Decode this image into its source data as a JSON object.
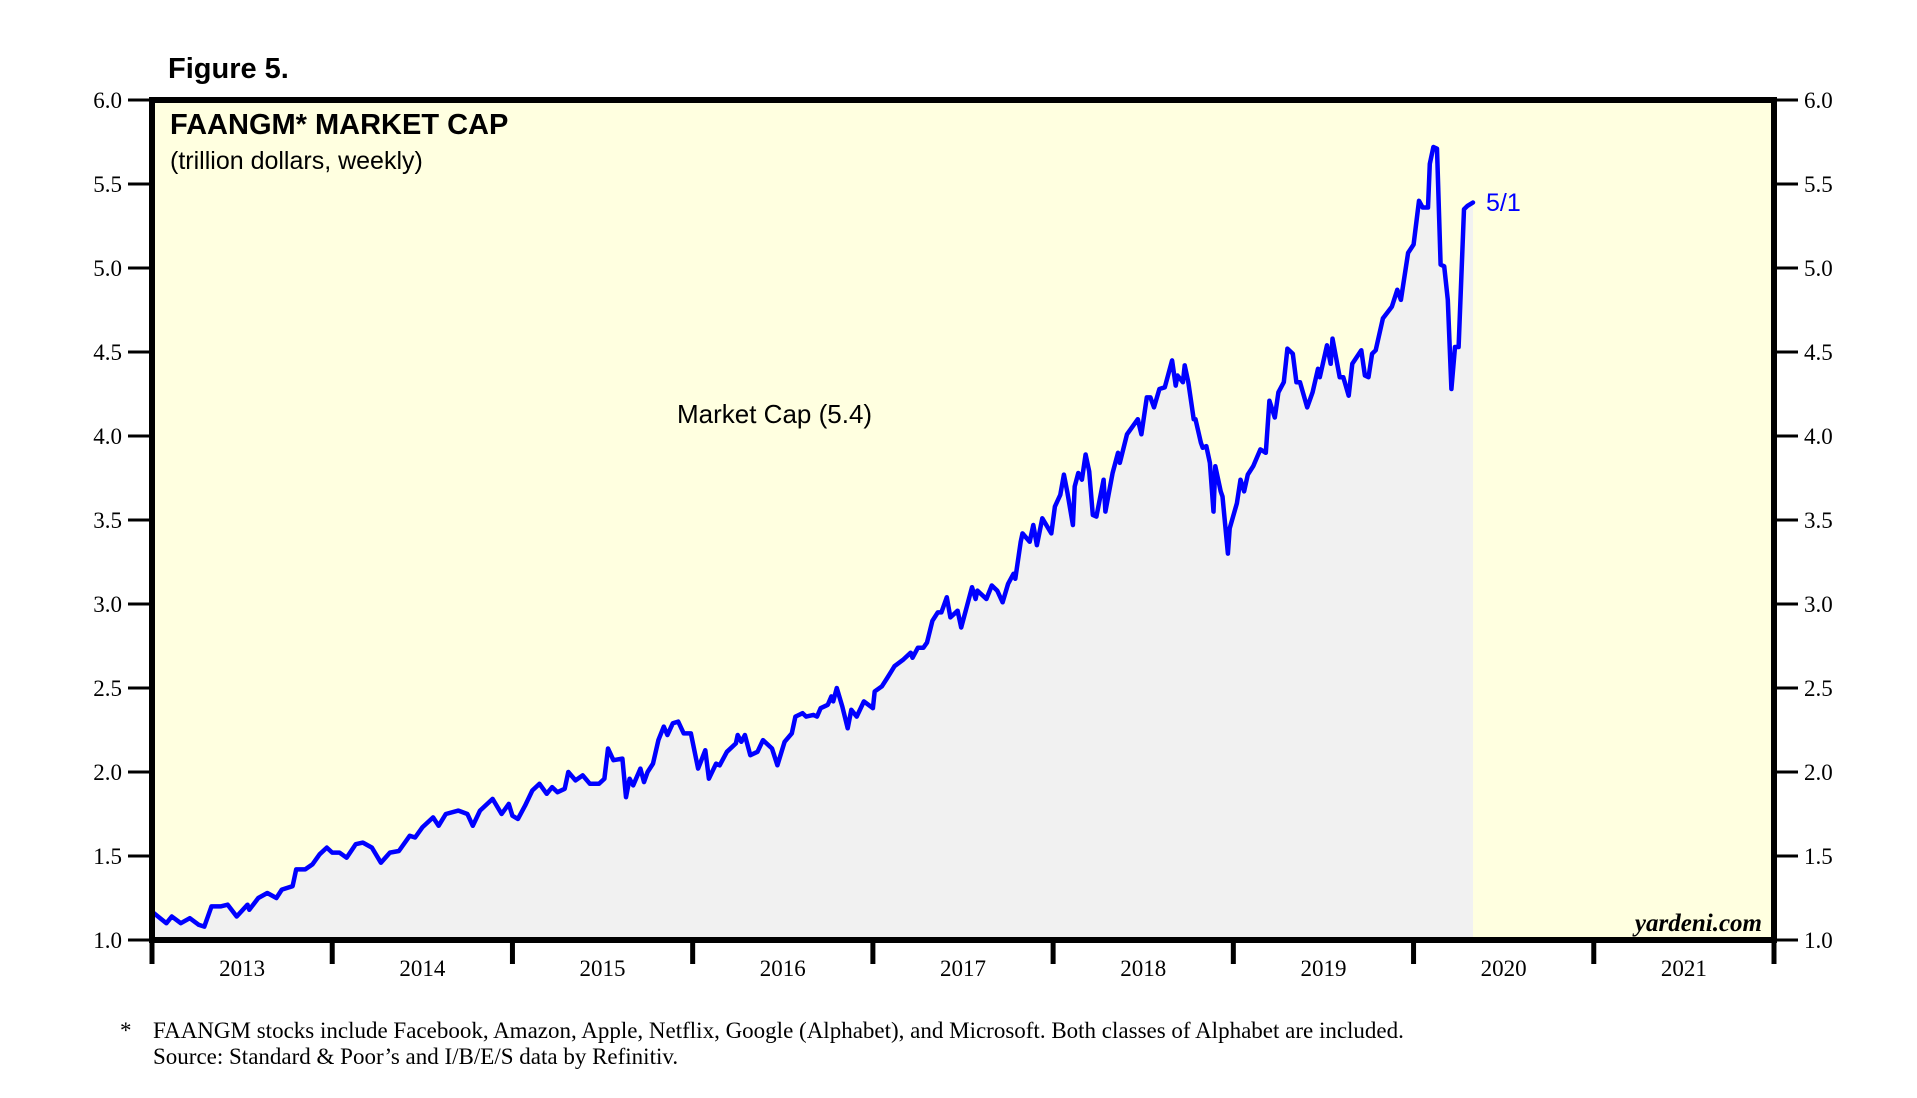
{
  "figure_label": "Figure 5.",
  "watermark": "yardeni.com",
  "footnote": {
    "marker": "*",
    "line1": "FAANGM stocks include Facebook, Amazon, Apple, Netflix, Google (Alphabet), and Microsoft. Both classes of Alphabet are included.",
    "line2": "Source: Standard & Poor’s and I/B/E/S data by Refinitiv."
  },
  "colors": {
    "line": "#0000ff",
    "area_fill": "#f1f1f1",
    "plot_background": "#ffffe0",
    "axis": "#000000"
  },
  "chart_data": {
    "type": "area",
    "title": "FAANGM* MARKET CAP",
    "subtitle": "(trillion dollars, weekly)",
    "xlabel": "",
    "ylabel": "",
    "ylim": [
      1.0,
      6.0
    ],
    "xlim": [
      2013,
      2022
    ],
    "grid": false,
    "y_ticks": [
      "1.0",
      "1.5",
      "2.0",
      "2.5",
      "3.0",
      "3.5",
      "4.0",
      "4.5",
      "5.0",
      "5.5",
      "6.0"
    ],
    "y_tick_values": [
      1.0,
      1.5,
      2.0,
      2.5,
      3.0,
      3.5,
      4.0,
      4.5,
      5.0,
      5.5,
      6.0
    ],
    "x_tick_labels": [
      "2013",
      "2014",
      "2015",
      "2016",
      "2017",
      "2018",
      "2019",
      "2020",
      "2021"
    ],
    "y_axis_both_sides": true,
    "series": [
      {
        "name": "Market Cap (5.4)",
        "label": "Market Cap (5.4)",
        "end_label": "5/1",
        "latest_value": 5.4,
        "x_unit": "decimal year",
        "points": [
          [
            2013.01,
            1.16
          ],
          [
            2013.08,
            1.1
          ],
          [
            2013.11,
            1.14
          ],
          [
            2013.16,
            1.1
          ],
          [
            2013.21,
            1.13
          ],
          [
            2013.26,
            1.09
          ],
          [
            2013.29,
            1.08
          ],
          [
            2013.33,
            1.2
          ],
          [
            2013.38,
            1.2
          ],
          [
            2013.42,
            1.21
          ],
          [
            2013.47,
            1.14
          ],
          [
            2013.53,
            1.21
          ],
          [
            2013.54,
            1.18
          ],
          [
            2013.59,
            1.25
          ],
          [
            2013.64,
            1.28
          ],
          [
            2013.69,
            1.25
          ],
          [
            2013.72,
            1.3
          ],
          [
            2013.78,
            1.32
          ],
          [
            2013.8,
            1.42
          ],
          [
            2013.85,
            1.42
          ],
          [
            2013.89,
            1.45
          ],
          [
            2013.93,
            1.51
          ],
          [
            2013.97,
            1.55
          ],
          [
            2014.0,
            1.52
          ],
          [
            2014.04,
            1.52
          ],
          [
            2014.08,
            1.49
          ],
          [
            2014.13,
            1.57
          ],
          [
            2014.17,
            1.58
          ],
          [
            2014.22,
            1.55
          ],
          [
            2014.27,
            1.46
          ],
          [
            2014.32,
            1.52
          ],
          [
            2014.37,
            1.53
          ],
          [
            2014.43,
            1.62
          ],
          [
            2014.46,
            1.61
          ],
          [
            2014.5,
            1.67
          ],
          [
            2014.56,
            1.73
          ],
          [
            2014.59,
            1.68
          ],
          [
            2014.63,
            1.75
          ],
          [
            2014.7,
            1.77
          ],
          [
            2014.75,
            1.75
          ],
          [
            2014.78,
            1.68
          ],
          [
            2014.82,
            1.77
          ],
          [
            2014.89,
            1.84
          ],
          [
            2014.94,
            1.75
          ],
          [
            2014.98,
            1.81
          ],
          [
            2015.0,
            1.74
          ],
          [
            2015.03,
            1.72
          ],
          [
            2015.07,
            1.8
          ],
          [
            2015.11,
            1.89
          ],
          [
            2015.15,
            1.93
          ],
          [
            2015.19,
            1.87
          ],
          [
            2015.22,
            1.91
          ],
          [
            2015.25,
            1.88
          ],
          [
            2015.29,
            1.9
          ],
          [
            2015.31,
            2.0
          ],
          [
            2015.35,
            1.95
          ],
          [
            2015.39,
            1.98
          ],
          [
            2015.43,
            1.93
          ],
          [
            2015.48,
            1.93
          ],
          [
            2015.51,
            1.96
          ],
          [
            2015.53,
            2.14
          ],
          [
            2015.56,
            2.07
          ],
          [
            2015.61,
            2.08
          ],
          [
            2015.63,
            1.85
          ],
          [
            2015.65,
            1.96
          ],
          [
            2015.67,
            1.92
          ],
          [
            2015.71,
            2.02
          ],
          [
            2015.73,
            1.94
          ],
          [
            2015.75,
            2.0
          ],
          [
            2015.78,
            2.05
          ],
          [
            2015.81,
            2.19
          ],
          [
            2015.84,
            2.27
          ],
          [
            2015.86,
            2.22
          ],
          [
            2015.89,
            2.29
          ],
          [
            2015.92,
            2.3
          ],
          [
            2015.95,
            2.23
          ],
          [
            2015.99,
            2.23
          ],
          [
            2016.03,
            2.02
          ],
          [
            2016.07,
            2.13
          ],
          [
            2016.09,
            1.96
          ],
          [
            2016.13,
            2.05
          ],
          [
            2016.15,
            2.04
          ],
          [
            2016.19,
            2.12
          ],
          [
            2016.24,
            2.17
          ],
          [
            2016.25,
            2.22
          ],
          [
            2016.27,
            2.18
          ],
          [
            2016.29,
            2.22
          ],
          [
            2016.32,
            2.1
          ],
          [
            2016.36,
            2.12
          ],
          [
            2016.39,
            2.19
          ],
          [
            2016.44,
            2.14
          ],
          [
            2016.47,
            2.04
          ],
          [
            2016.51,
            2.18
          ],
          [
            2016.55,
            2.23
          ],
          [
            2016.57,
            2.33
          ],
          [
            2016.61,
            2.35
          ],
          [
            2016.63,
            2.33
          ],
          [
            2016.67,
            2.34
          ],
          [
            2016.69,
            2.33
          ],
          [
            2016.71,
            2.38
          ],
          [
            2016.75,
            2.4
          ],
          [
            2016.77,
            2.45
          ],
          [
            2016.78,
            2.42
          ],
          [
            2016.8,
            2.5
          ],
          [
            2016.83,
            2.39
          ],
          [
            2016.86,
            2.26
          ],
          [
            2016.88,
            2.37
          ],
          [
            2016.91,
            2.33
          ],
          [
            2016.95,
            2.42
          ],
          [
            2017.0,
            2.38
          ],
          [
            2017.01,
            2.48
          ],
          [
            2017.05,
            2.51
          ],
          [
            2017.08,
            2.56
          ],
          [
            2017.12,
            2.63
          ],
          [
            2017.17,
            2.67
          ],
          [
            2017.21,
            2.71
          ],
          [
            2017.22,
            2.68
          ],
          [
            2017.25,
            2.74
          ],
          [
            2017.28,
            2.74
          ],
          [
            2017.3,
            2.77
          ],
          [
            2017.33,
            2.9
          ],
          [
            2017.36,
            2.95
          ],
          [
            2017.38,
            2.95
          ],
          [
            2017.41,
            3.04
          ],
          [
            2017.43,
            2.92
          ],
          [
            2017.47,
            2.96
          ],
          [
            2017.49,
            2.86
          ],
          [
            2017.52,
            2.98
          ],
          [
            2017.55,
            3.1
          ],
          [
            2017.57,
            3.03
          ],
          [
            2017.58,
            3.08
          ],
          [
            2017.63,
            3.03
          ],
          [
            2017.66,
            3.11
          ],
          [
            2017.69,
            3.08
          ],
          [
            2017.72,
            3.01
          ],
          [
            2017.75,
            3.12
          ],
          [
            2017.78,
            3.18
          ],
          [
            2017.79,
            3.15
          ],
          [
            2017.82,
            3.37
          ],
          [
            2017.83,
            3.42
          ],
          [
            2017.87,
            3.37
          ],
          [
            2017.89,
            3.47
          ],
          [
            2017.91,
            3.35
          ],
          [
            2017.94,
            3.51
          ],
          [
            2017.99,
            3.42
          ],
          [
            2018.01,
            3.58
          ],
          [
            2018.04,
            3.65
          ],
          [
            2018.06,
            3.77
          ],
          [
            2018.08,
            3.66
          ],
          [
            2018.11,
            3.47
          ],
          [
            2018.12,
            3.7
          ],
          [
            2018.14,
            3.78
          ],
          [
            2018.16,
            3.74
          ],
          [
            2018.18,
            3.89
          ],
          [
            2018.2,
            3.79
          ],
          [
            2018.22,
            3.53
          ],
          [
            2018.24,
            3.52
          ],
          [
            2018.28,
            3.74
          ],
          [
            2018.29,
            3.55
          ],
          [
            2018.33,
            3.78
          ],
          [
            2018.36,
            3.9
          ],
          [
            2018.37,
            3.84
          ],
          [
            2018.41,
            4.01
          ],
          [
            2018.47,
            4.1
          ],
          [
            2018.49,
            4.01
          ],
          [
            2018.52,
            4.23
          ],
          [
            2018.54,
            4.23
          ],
          [
            2018.56,
            4.17
          ],
          [
            2018.59,
            4.28
          ],
          [
            2018.62,
            4.29
          ],
          [
            2018.66,
            4.45
          ],
          [
            2018.68,
            4.3
          ],
          [
            2018.69,
            4.36
          ],
          [
            2018.72,
            4.32
          ],
          [
            2018.73,
            4.42
          ],
          [
            2018.75,
            4.32
          ],
          [
            2018.78,
            4.1
          ],
          [
            2018.79,
            4.1
          ],
          [
            2018.82,
            3.96
          ],
          [
            2018.83,
            3.93
          ],
          [
            2018.85,
            3.94
          ],
          [
            2018.87,
            3.84
          ],
          [
            2018.89,
            3.55
          ],
          [
            2018.9,
            3.82
          ],
          [
            2018.93,
            3.67
          ],
          [
            2018.94,
            3.64
          ],
          [
            2018.97,
            3.3
          ],
          [
            2018.98,
            3.45
          ],
          [
            2019.02,
            3.6
          ],
          [
            2019.04,
            3.74
          ],
          [
            2019.06,
            3.67
          ],
          [
            2019.08,
            3.77
          ],
          [
            2019.11,
            3.82
          ],
          [
            2019.15,
            3.92
          ],
          [
            2019.18,
            3.9
          ],
          [
            2019.2,
            4.21
          ],
          [
            2019.23,
            4.11
          ],
          [
            2019.25,
            4.26
          ],
          [
            2019.28,
            4.32
          ],
          [
            2019.3,
            4.52
          ],
          [
            2019.33,
            4.49
          ],
          [
            2019.35,
            4.32
          ],
          [
            2019.37,
            4.32
          ],
          [
            2019.41,
            4.17
          ],
          [
            2019.44,
            4.26
          ],
          [
            2019.47,
            4.4
          ],
          [
            2019.48,
            4.35
          ],
          [
            2019.52,
            4.54
          ],
          [
            2019.54,
            4.43
          ],
          [
            2019.55,
            4.58
          ],
          [
            2019.59,
            4.35
          ],
          [
            2019.61,
            4.35
          ],
          [
            2019.64,
            4.24
          ],
          [
            2019.66,
            4.43
          ],
          [
            2019.71,
            4.51
          ],
          [
            2019.73,
            4.36
          ],
          [
            2019.75,
            4.35
          ],
          [
            2019.77,
            4.49
          ],
          [
            2019.79,
            4.51
          ],
          [
            2019.83,
            4.7
          ],
          [
            2019.88,
            4.77
          ],
          [
            2019.91,
            4.87
          ],
          [
            2019.93,
            4.81
          ],
          [
            2019.97,
            5.09
          ],
          [
            2020.0,
            5.14
          ],
          [
            2020.03,
            5.4
          ],
          [
            2020.05,
            5.36
          ],
          [
            2020.08,
            5.36
          ],
          [
            2020.09,
            5.62
          ],
          [
            2020.11,
            5.72
          ],
          [
            2020.13,
            5.71
          ],
          [
            2020.15,
            5.02
          ],
          [
            2020.17,
            5.01
          ],
          [
            2020.19,
            4.81
          ],
          [
            2020.21,
            4.28
          ],
          [
            2020.23,
            4.53
          ],
          [
            2020.25,
            4.53
          ],
          [
            2020.28,
            5.35
          ],
          [
            2020.3,
            5.37
          ],
          [
            2020.33,
            5.39
          ]
        ]
      }
    ]
  }
}
